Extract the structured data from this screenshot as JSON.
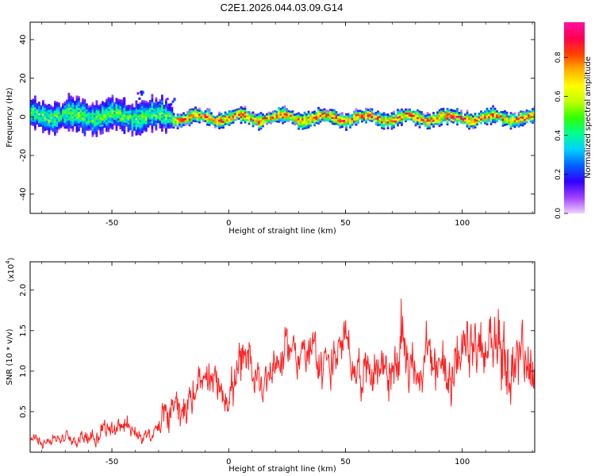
{
  "title": "C2E1.2026.044.03.09.G14",
  "chart_data": [
    {
      "type": "heatmap",
      "xlabel": "Height of straight line (km)",
      "ylabel": "Frequency (Hz)",
      "xlim": [
        -85,
        131
      ],
      "ylim": [
        -50,
        49
      ],
      "xticks": [
        -50,
        0,
        50,
        100
      ],
      "yticks": [
        -40,
        -20,
        0,
        20,
        40
      ],
      "colorbar": {
        "label": "Normalized spectral amplitude",
        "range": [
          0.0,
          0.98
        ],
        "ticks": [
          0.0,
          0.2,
          0.4,
          0.6,
          0.8
        ],
        "colors": [
          "#f0d0ff",
          "#a040ff",
          "#3000ff",
          "#0060ff",
          "#00d0ff",
          "#00ff90",
          "#30ff00",
          "#c0ff00",
          "#ffff00",
          "#ffb000",
          "#ff4000",
          "#ff0050",
          "#ff10a0"
        ]
      },
      "band": {
        "segments": [
          {
            "x_start": -85,
            "x_end": -24,
            "center_freq": 0,
            "half_width": 7,
            "peak": 0.55
          },
          {
            "x_start": -24,
            "x_end": 131,
            "center_freq": -1,
            "half_width": 3,
            "peak": 0.95
          }
        ],
        "outliers": [
          {
            "x": -38,
            "freq": 12
          },
          {
            "x": -45,
            "freq": 8
          },
          {
            "x": -25,
            "freq": 8
          }
        ]
      }
    },
    {
      "type": "line",
      "xlabel": "Height of straight line (km)",
      "ylabel": "SNR (10 * v/v)",
      "y_multiplier": "(x10",
      "y_multiplier_exp": "4",
      "xlim": [
        -85,
        131
      ],
      "ylim": [
        0,
        23500
      ],
      "xticks": [
        -50,
        0,
        50,
        100
      ],
      "yticks": [
        5000,
        10000,
        15000,
        20000
      ],
      "ytick_labels": [
        "0.5",
        "1.0",
        "1.5",
        "2.0"
      ],
      "color": "#ff2020",
      "series": [
        {
          "x": [
            -85,
            -75,
            -65,
            -55,
            -48,
            -40,
            -33,
            -28,
            -22,
            -15,
            -8,
            -3,
            0,
            5,
            10,
            15,
            20,
            25,
            30,
            35,
            40,
            45,
            50,
            55,
            60,
            65,
            70,
            75,
            80,
            85,
            90,
            95,
            100,
            105,
            110,
            115,
            120,
            125,
            131
          ],
          "y": [
            1500,
            1800,
            1700,
            2800,
            3500,
            2500,
            1500,
            4000,
            6500,
            7000,
            7500,
            8000,
            8500,
            9500,
            9000,
            10000,
            11000,
            12500,
            13000,
            11500,
            11000,
            12000,
            12500,
            11000,
            10500,
            11500,
            10000,
            13000,
            10500,
            11000,
            10000,
            12000,
            9500,
            12500,
            11000,
            14000,
            10500,
            12500,
            11500
          ],
          "noise": [
            700,
            900,
            900,
            1500,
            1800,
            1400,
            800,
            2500,
            3200,
            3000,
            3000,
            3200,
            3500,
            4000,
            3500,
            3500,
            3000,
            3000,
            3000,
            3200,
            3500,
            3500,
            3200,
            3500,
            3800,
            3500,
            4000,
            5500,
            3800,
            4000,
            4500,
            4500,
            4500,
            4500,
            5000,
            5500,
            5000,
            4500,
            4000
          ]
        }
      ]
    }
  ]
}
